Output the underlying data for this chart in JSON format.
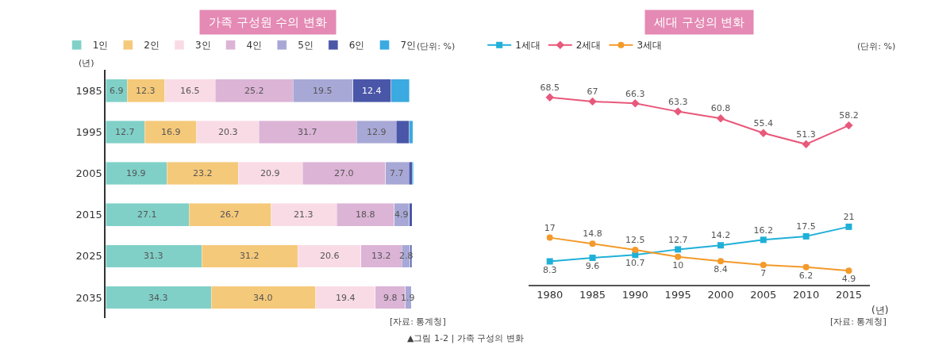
{
  "chart_data": [
    {
      "type": "bar",
      "orientation": "horizontal",
      "stacked": true,
      "title": "가족 구성원 수의 변화",
      "ylabel": "(년)",
      "categories": [
        "1985",
        "1995",
        "2005",
        "2015",
        "2025",
        "2035"
      ],
      "series": [
        {
          "name": "1인",
          "color": "#80d0c8",
          "values": [
            6.9,
            12.7,
            19.9,
            27.1,
            31.3,
            34.3
          ],
          "value_labels": [
            "6.9",
            "12.7",
            "19.9",
            "27.1",
            "31.3",
            "34.3"
          ]
        },
        {
          "name": "2인",
          "color": "#f5c97a",
          "values": [
            12.3,
            16.9,
            23.2,
            26.7,
            31.2,
            34.0
          ],
          "value_labels": [
            "12.3",
            "16.9",
            "23.2",
            "26.7",
            "31.2",
            "34.0"
          ]
        },
        {
          "name": "3인",
          "color": "#f9dbe6",
          "values": [
            16.5,
            20.3,
            20.9,
            21.3,
            20.6,
            19.4
          ],
          "value_labels": [
            "16.5",
            "20.3",
            "20.9",
            "21.3",
            "20.6",
            "19.4"
          ]
        },
        {
          "name": "4인",
          "color": "#dcb4d6",
          "values": [
            25.2,
            31.7,
            27.0,
            18.8,
            13.2,
            9.8
          ],
          "value_labels": [
            "25.2",
            "31.7",
            "27.0",
            "18.8",
            "13.2",
            "9.8"
          ]
        },
        {
          "name": "5인",
          "color": "#a8a8d6",
          "values": [
            19.5,
            12.9,
            7.7,
            4.9,
            2.8,
            1.9
          ],
          "value_labels": [
            "19.5",
            "12.9",
            "7.7",
            "4.9",
            "2.8",
            "1.9"
          ]
        },
        {
          "name": "6인",
          "color": "#4a56a8",
          "values": [
            12.4,
            4.3,
            1.0,
            0.9,
            0.5,
            null
          ],
          "value_labels": [
            "12.4",
            null,
            null,
            null,
            null,
            null
          ]
        },
        {
          "name": "7인",
          "color": "#3aaae0",
          "values": [
            6.0,
            1.2,
            0.4,
            null,
            null,
            null
          ],
          "value_labels": [
            null,
            null,
            null,
            null,
            null,
            null
          ]
        }
      ],
      "legend": "top",
      "annotations": [
        "(단위: %)",
        "[자료: 통계청]"
      ]
    },
    {
      "type": "line",
      "title": "세대 구성의 변화",
      "xlabel": "(년)",
      "data_labels": true,
      "categories": [
        "1980",
        "1985",
        "1990",
        "1995",
        "2000",
        "2005",
        "2010",
        "2015"
      ],
      "series": [
        {
          "name": "1세대",
          "color": "#1fb0d8",
          "marker": "square",
          "values": [
            8.3,
            9.6,
            10.7,
            12.7,
            14.2,
            16.2,
            17.5,
            21
          ]
        },
        {
          "name": "2세대",
          "color": "#e8587a",
          "marker": "diamond",
          "values": [
            68.5,
            67,
            66.3,
            63.3,
            60.8,
            55.4,
            51.3,
            58.2
          ]
        },
        {
          "name": "3세대",
          "color": "#f39a2a",
          "marker": "circle",
          "values": [
            17,
            14.8,
            12.5,
            10,
            8.4,
            7,
            6.2,
            4.9
          ]
        }
      ],
      "legend": "top",
      "line_style": "solid",
      "annotations": [
        "(단위: %)",
        "[자료: 통계청]",
        "▲그림 1-2 | 가족 구성의 변화"
      ]
    }
  ]
}
